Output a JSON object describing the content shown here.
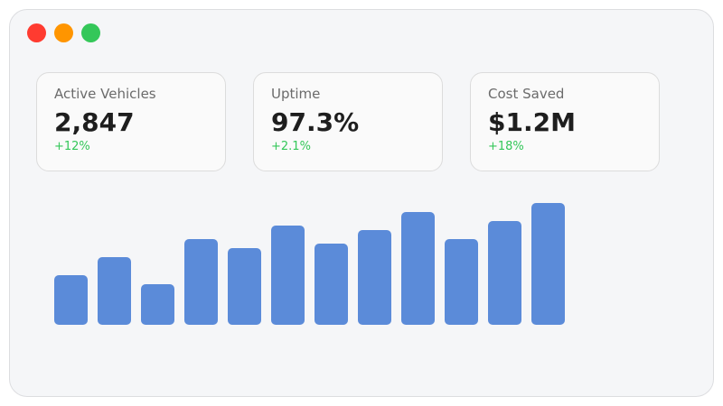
{
  "window": {
    "controls": [
      {
        "name": "close",
        "color": "#ff3b30"
      },
      {
        "name": "minimize",
        "color": "#ff9500"
      },
      {
        "name": "maximize",
        "color": "#34c759"
      }
    ]
  },
  "cards": [
    {
      "label": "Active Vehicles",
      "value": "2,847",
      "change": "+12%"
    },
    {
      "label": "Uptime",
      "value": "97.3%",
      "change": "+2.1%"
    },
    {
      "label": "Cost Saved",
      "value": "$1.2M",
      "change": "+18%"
    }
  ],
  "chart_data": {
    "type": "bar",
    "values": [
      55,
      75,
      45,
      95,
      85,
      110,
      90,
      105,
      125,
      95,
      115,
      135
    ],
    "color": "#5b8bd9",
    "axes": "none",
    "grid": false
  }
}
